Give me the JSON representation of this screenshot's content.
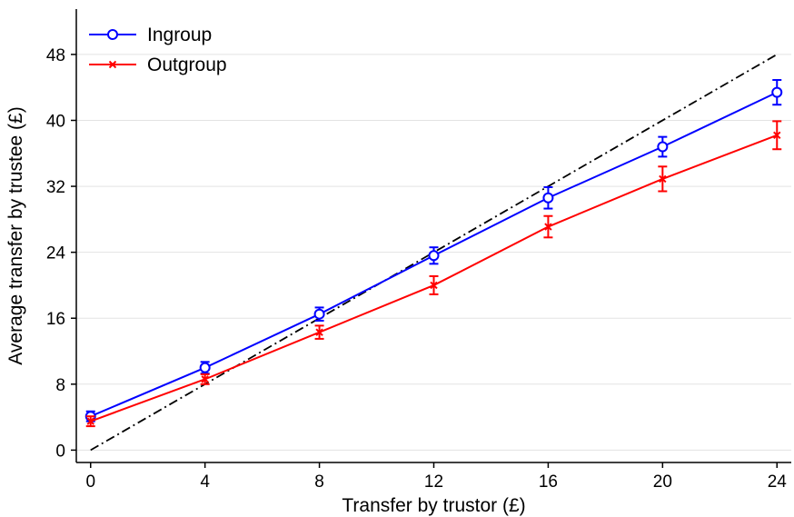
{
  "chart_data": {
    "type": "line",
    "title": "",
    "xlabel": "Transfer by trustor (£)",
    "ylabel": "Average transfer by trustee (£)",
    "x": [
      0,
      4,
      8,
      12,
      16,
      20,
      24
    ],
    "xlim": [
      -0.5,
      24.5
    ],
    "ylim": [
      -1.5,
      53.5
    ],
    "xticks": [
      0,
      4,
      8,
      12,
      16,
      20,
      24
    ],
    "yticks": [
      0,
      8,
      16,
      24,
      32,
      40,
      48
    ],
    "grid": true,
    "legend_position": "top-left",
    "series": [
      {
        "name": "Ingroup",
        "color": "#0000ff",
        "marker": "circle",
        "values": [
          4.1,
          10.0,
          16.5,
          23.6,
          30.6,
          36.8,
          43.4
        ],
        "error_low": [
          3.5,
          9.3,
          15.7,
          22.6,
          29.3,
          35.6,
          41.9
        ],
        "error_high": [
          4.7,
          10.7,
          17.3,
          24.6,
          31.9,
          38.0,
          44.9
        ]
      },
      {
        "name": "Outgroup",
        "color": "#ff0000",
        "marker": "x",
        "values": [
          3.5,
          8.6,
          14.3,
          20.0,
          27.1,
          32.9,
          38.2
        ],
        "error_low": [
          2.9,
          8.0,
          13.5,
          18.9,
          25.8,
          31.4,
          36.5
        ],
        "error_high": [
          4.1,
          9.2,
          15.1,
          21.1,
          28.4,
          34.4,
          39.9
        ]
      }
    ],
    "reference_line": {
      "color": "#000000",
      "style": "dash-dot",
      "x": [
        0,
        24
      ],
      "y": [
        0,
        48
      ]
    }
  }
}
